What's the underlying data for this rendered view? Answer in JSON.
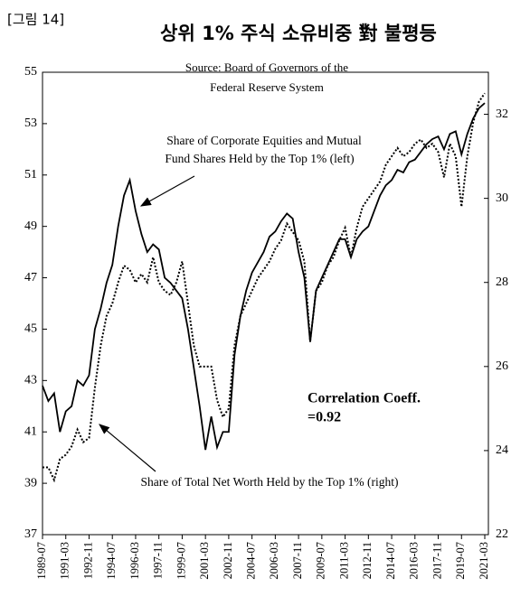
{
  "chart_data": {
    "type": "line",
    "figure_label": "[그림 14]",
    "title": "상위 1% 주식 소유비중 對 불평등",
    "source": [
      "Source: Board of Governors of the",
      "Federal Reserve System"
    ],
    "annotations": [
      {
        "lines": [
          "Share of Corporate Equities and Mutual",
          "Fund Shares Held by the Top 1% (left)"
        ]
      },
      {
        "lines": [
          "Share of Total Net Worth Held by the Top 1% (right)"
        ]
      },
      {
        "lines": [
          "Correlation Coeff.",
          "=0.92"
        ]
      }
    ],
    "categories": [
      "1989-07",
      null,
      null,
      null,
      "1991-03",
      null,
      null,
      null,
      "1992-11",
      null,
      null,
      null,
      "1994-07",
      null,
      null,
      null,
      "1996-03",
      null,
      null,
      null,
      "1997-11",
      null,
      null,
      null,
      "1999-07",
      null,
      null,
      null,
      "2001-03",
      null,
      null,
      null,
      "2002-11",
      null,
      null,
      null,
      "2004-07",
      null,
      null,
      null,
      "2006-03",
      null,
      null,
      null,
      "2007-11",
      null,
      null,
      null,
      "2009-07",
      null,
      null,
      null,
      "2011-03",
      null,
      null,
      null,
      "2012-11",
      null,
      null,
      null,
      "2014-07",
      null,
      null,
      null,
      "2016-03",
      null,
      null,
      null,
      "2017-11",
      null,
      null,
      null,
      "2019-07",
      null,
      null,
      null,
      "2021-03"
    ],
    "series": [
      {
        "color": "#000000",
        "dash": "solid",
        "axis": "y",
        "values": [
          42.8,
          42.2,
          42.5,
          41.0,
          41.8,
          42.0,
          43.0,
          42.8,
          43.2,
          45.0,
          45.8,
          46.8,
          47.5,
          49.0,
          50.2,
          50.8,
          49.6,
          48.7,
          48.0,
          48.3,
          48.1,
          47.0,
          46.8,
          46.5,
          46.2,
          45.0,
          43.5,
          42.0,
          40.3,
          41.6,
          40.4,
          41.0,
          41.0,
          44.0,
          45.5,
          46.5,
          47.2,
          47.6,
          48.0,
          48.6,
          48.8,
          49.2,
          49.5,
          49.3,
          48.0,
          47.0,
          44.5,
          46.5,
          47.0,
          47.5,
          48.0,
          48.5,
          48.5,
          47.8,
          48.5,
          48.8,
          49.0,
          49.6,
          50.2,
          50.6,
          50.8,
          51.2,
          51.1,
          51.5,
          51.6,
          51.9,
          52.2,
          52.4,
          52.5,
          52.0,
          52.6,
          52.7,
          51.8,
          52.6,
          53.2,
          53.6,
          53.8
        ]
      },
      {
        "color": "#000000",
        "dash": "dotted",
        "axis": "y2",
        "values": [
          23.6,
          23.6,
          23.3,
          23.8,
          23.9,
          24.1,
          24.5,
          24.2,
          24.3,
          25.5,
          26.5,
          27.2,
          27.5,
          28.0,
          28.4,
          28.3,
          28.0,
          28.2,
          28.0,
          28.6,
          28.0,
          27.8,
          27.7,
          28.0,
          28.5,
          27.5,
          26.5,
          26.0,
          26.0,
          26.0,
          25.2,
          24.8,
          25.0,
          26.5,
          27.2,
          27.5,
          27.8,
          28.1,
          28.3,
          28.5,
          28.8,
          29.0,
          29.4,
          29.2,
          29.0,
          28.5,
          26.6,
          27.8,
          28.0,
          28.4,
          28.6,
          29.0,
          29.3,
          28.6,
          29.3,
          29.8,
          30.0,
          30.2,
          30.4,
          30.8,
          31.0,
          31.2,
          31.0,
          31.1,
          31.3,
          31.4,
          31.2,
          31.3,
          31.1,
          30.5,
          31.3,
          31.0,
          29.8,
          31.0,
          31.8,
          32.3,
          32.5
        ]
      }
    ],
    "ylim": [
      37,
      55
    ],
    "yticks": [
      37,
      39,
      41,
      43,
      45,
      47,
      49,
      51,
      53,
      55
    ],
    "y2lim": [
      22,
      33
    ],
    "y2ticks": [
      22,
      24,
      26,
      28,
      30,
      32
    ]
  }
}
